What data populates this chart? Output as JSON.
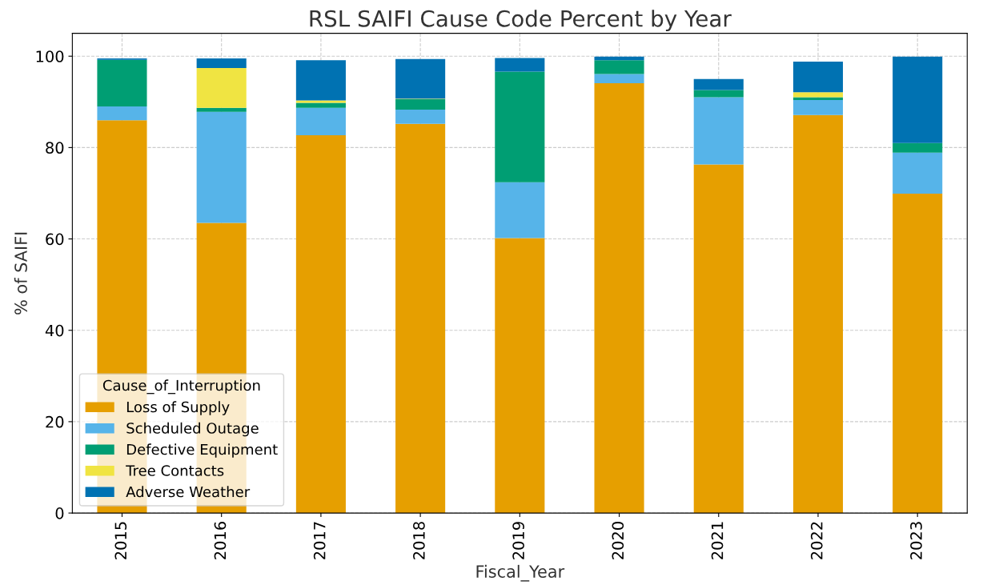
{
  "chart_data": {
    "type": "bar",
    "title": "RSL SAIFI Cause Code Percent by Year",
    "xlabel": "Fiscal_Year",
    "ylabel": "% of SAIFI",
    "legend_title": "Cause_of_Interruption",
    "categories": [
      "2015",
      "2016",
      "2017",
      "2018",
      "2019",
      "2020",
      "2021",
      "2022",
      "2023"
    ],
    "stacked": true,
    "series": [
      {
        "name": "Loss of Supply",
        "color": "#e69f00",
        "values": [
          86.0,
          63.5,
          82.7,
          85.2,
          60.2,
          94.1,
          76.3,
          87.1,
          69.9
        ]
      },
      {
        "name": "Scheduled Outage",
        "color": "#56b4e9",
        "values": [
          3.0,
          24.3,
          6.0,
          3.1,
          12.2,
          2.0,
          14.7,
          3.3,
          9.0
        ]
      },
      {
        "name": "Defective Equipment",
        "color": "#009e73",
        "values": [
          10.2,
          0.9,
          1.1,
          2.3,
          24.2,
          3.0,
          1.6,
          0.6,
          2.1
        ]
      },
      {
        "name": "Tree Contacts",
        "color": "#f0e442",
        "values": [
          0,
          8.7,
          0.5,
          0.1,
          0,
          0,
          0,
          1.1,
          0
        ]
      },
      {
        "name": "Adverse Weather",
        "color": "#0072b2",
        "values": [
          0.3,
          2.1,
          8.8,
          8.7,
          3.0,
          0.8,
          2.4,
          6.7,
          18.9
        ]
      }
    ],
    "ylim": [
      0,
      105
    ],
    "yticks": [
      0,
      20,
      40,
      60,
      80,
      100
    ],
    "grid": true,
    "legend": "bottom left"
  }
}
